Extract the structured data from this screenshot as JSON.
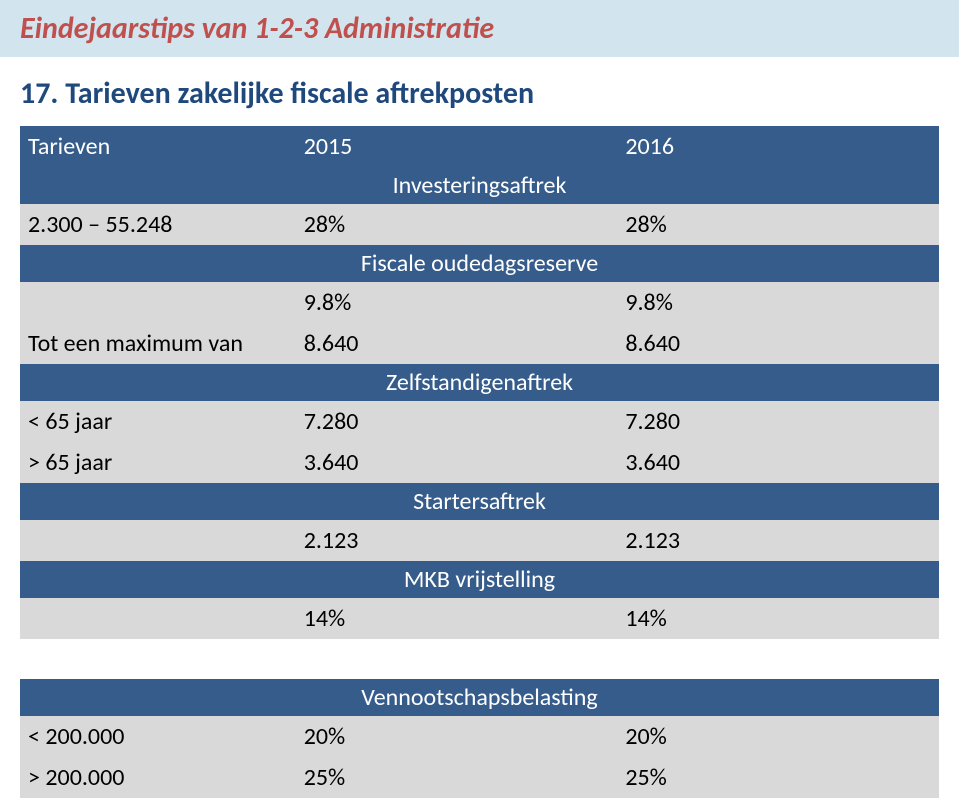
{
  "page": {
    "title": "Eindejaarstips van 1-2-3 Administratie",
    "heading": "17. Tarieven zakelijke fiscale aftrekposten"
  },
  "colors": {
    "title_bar_bg": "#d2e4ed",
    "title_text": "#c0504d",
    "heading_text": "#1f497d",
    "table_header_bg": "#355c8a",
    "table_header_text": "#ffffff",
    "data_row_bg": "#d9d9d9",
    "data_text": "#000000",
    "page_bg": "#ffffff"
  },
  "typography": {
    "title_fontsize": 30,
    "heading_fontsize": 30,
    "table_fontsize": 24,
    "font_family": "Calibri"
  },
  "main_table": {
    "header": {
      "col1": "Tarieven",
      "col2": "2015",
      "col3": "2016"
    },
    "sections": [
      {
        "title": "Investeringsaftrek",
        "rows": [
          {
            "label": "2.300 – 55.248",
            "v2015": "28%",
            "v2016": "28%"
          }
        ]
      },
      {
        "title": "Fiscale oudedagsreserve",
        "rows": [
          {
            "label": "",
            "v2015": "9.8%",
            "v2016": "9.8%"
          },
          {
            "label": "Tot een maximum van",
            "v2015": "8.640",
            "v2016": "8.640"
          }
        ]
      },
      {
        "title": "Zelfstandigenaftrek",
        "rows": [
          {
            "label": "< 65 jaar",
            "v2015": "7.280",
            "v2016": "7.280"
          },
          {
            "label": "> 65 jaar",
            "v2015": "3.640",
            "v2016": "3.640"
          }
        ]
      },
      {
        "title": "Startersaftrek",
        "rows": [
          {
            "label": "",
            "v2015": "2.123",
            "v2016": "2.123"
          }
        ]
      },
      {
        "title": "MKB vrijstelling",
        "rows": [
          {
            "label": "",
            "v2015": "14%",
            "v2016": "14%"
          }
        ]
      }
    ]
  },
  "second_table": {
    "title": "Vennootschapsbelasting",
    "rows": [
      {
        "label": "< 200.000",
        "v2015": "20%",
        "v2016": "20%"
      },
      {
        "label": "> 200.000",
        "v2015": "25%",
        "v2016": "25%"
      }
    ]
  }
}
